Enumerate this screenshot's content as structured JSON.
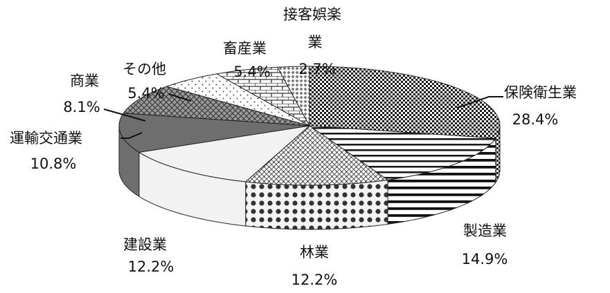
{
  "chart_data": {
    "type": "pie",
    "slices": [
      {
        "label": "保険衛生業",
        "value": 28.4,
        "value_text": "28.4%",
        "pattern": "checker-fine"
      },
      {
        "label": "製造業",
        "value": 14.9,
        "value_text": "14.9%",
        "pattern": "horizontal-stripes"
      },
      {
        "label": "林業",
        "value": 12.2,
        "value_text": "12.2%",
        "pattern": "crosshatch-dots"
      },
      {
        "label": "建設業",
        "value": 12.2,
        "value_text": "12.2%",
        "pattern": "light-solid"
      },
      {
        "label": "運輸交通業",
        "value": 10.8,
        "value_text": "10.8%",
        "pattern": "dark-solid"
      },
      {
        "label": "商業",
        "value": 8.1,
        "value_text": "8.1%",
        "pattern": "diamond-mesh"
      },
      {
        "label": "その他",
        "value": 5.4,
        "value_text": "5.4%",
        "pattern": "sparse-dots"
      },
      {
        "label": "畜産業",
        "value": 5.4,
        "value_text": "5.4%",
        "pattern": "brick"
      },
      {
        "label": "接客娯楽業",
        "label_lines": [
          "接客娯楽",
          "業"
        ],
        "value": 2.7,
        "value_text": "2.7%",
        "pattern": "diamond-small"
      }
    ],
    "start": "12 o'clock",
    "direction": "clockwise",
    "style": "3d-tilted",
    "colors": {
      "dark_side": "#6e6e6e",
      "light_side": "#f2f2f2",
      "edge": "#222222"
    }
  }
}
